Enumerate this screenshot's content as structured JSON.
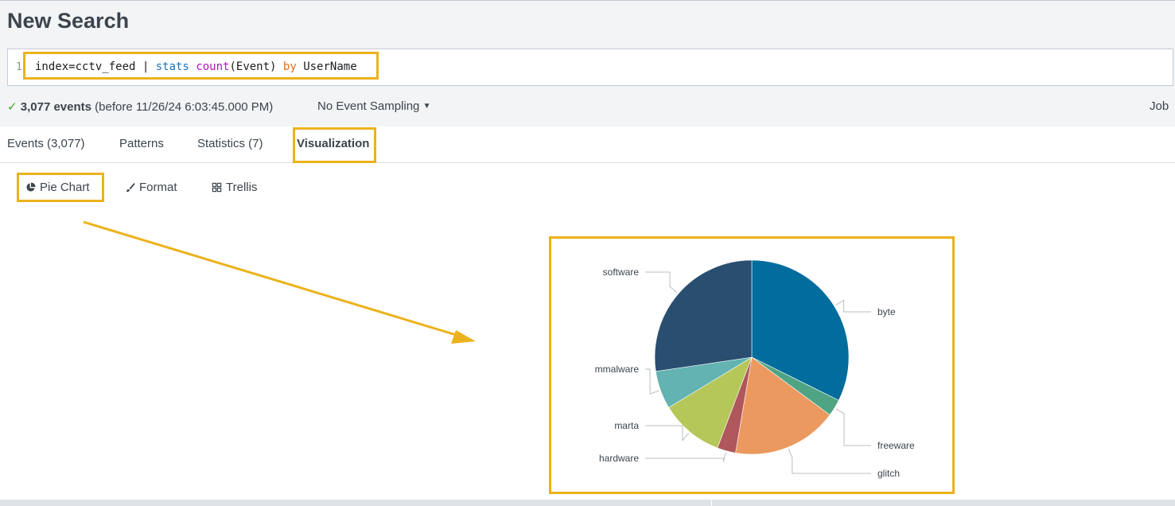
{
  "page": {
    "title": "New Search"
  },
  "search": {
    "line_number": "1",
    "query_parts": {
      "index": "index=cctv_feed | ",
      "command": "stats",
      "space": " ",
      "function": "count",
      "arg": "(Event) ",
      "keyword": "by",
      "field": " UserName"
    }
  },
  "status": {
    "checkmark": "✓",
    "count": "3,077 events",
    "detail": "(before 11/26/24 6:03:45.000 PM)",
    "sampling": "No Event Sampling",
    "job": "Job"
  },
  "tabs": [
    {
      "label": "Events (3,077)"
    },
    {
      "label": "Patterns"
    },
    {
      "label": "Statistics (7)"
    },
    {
      "label": "Visualization",
      "active": true
    }
  ],
  "viz_toolbar": {
    "chart_type": "Pie Chart",
    "format": "Format",
    "trellis": "Trellis",
    "icons": [
      "pie-chart-icon",
      "brush-icon",
      "grid-icon"
    ]
  },
  "colors": {
    "highlight": "#ecb21b",
    "accent_text": "#3c444d"
  },
  "chart_data": {
    "type": "pie",
    "categories": [
      "byte",
      "freeware",
      "glitch",
      "hardware",
      "marta",
      "mmalware",
      "software"
    ],
    "values": [
      995,
      86,
      540,
      95,
      325,
      195,
      841
    ],
    "colors": [
      "#006d9c",
      "#4fa484",
      "#ec9960",
      "#af575a",
      "#b6c75a",
      "#62b3b2",
      "#294e70"
    ],
    "labels_placement": "outside with leader lines"
  }
}
